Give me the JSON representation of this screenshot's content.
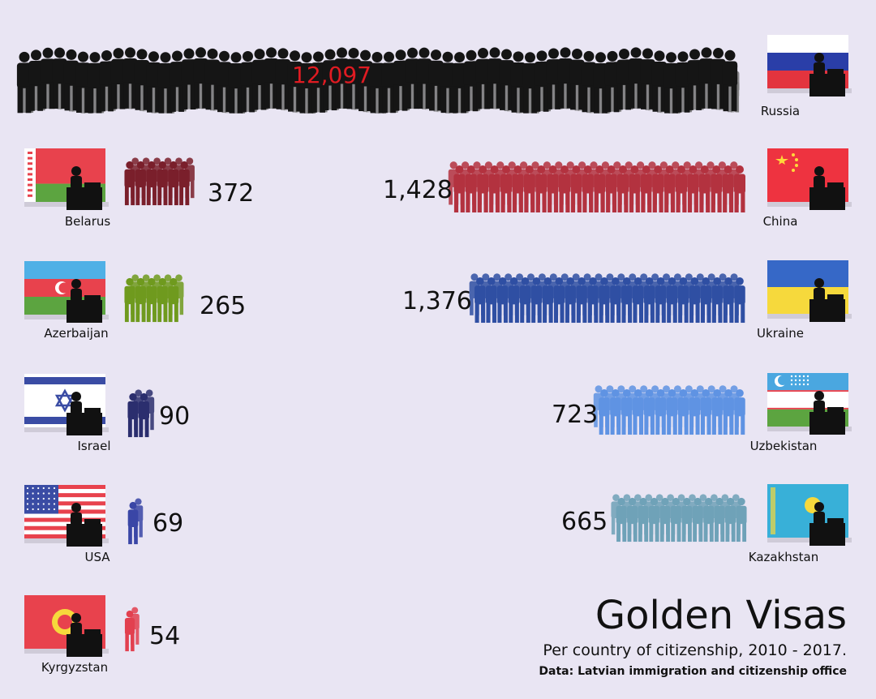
{
  "chart_data": {
    "type": "pictogram",
    "title": "Golden Visas",
    "subtitle": "Per country of citizenship, 2010 - 2017.",
    "source": "Data: Latvian immigration and citizenship office",
    "categories": [
      "Russia",
      "Belarus",
      "China",
      "Azerbaijan",
      "Ukraine",
      "Israel",
      "Uzbekistan",
      "USA",
      "Kazakhstan",
      "Kyrgyzstan"
    ],
    "values": [
      12097,
      372,
      1428,
      265,
      1376,
      90,
      723,
      69,
      665,
      54
    ],
    "value_labels": [
      "12,097",
      "372",
      "1,428",
      "265",
      "1,376",
      "90",
      "723",
      "69",
      "665",
      "54"
    ],
    "colors": {
      "Russia": "#1a1a1a",
      "Belarus": "#7a1f2b",
      "China": "#b3323f",
      "Azerbaijan": "#6f9a1e",
      "Ukraine": "#2f4fa3",
      "Israel": "#2b2e6e",
      "Uzbekistan": "#5f93e3",
      "USA": "#3a46a6",
      "Kazakhstan": "#6fa2b8",
      "Kyrgyzstan": "#e2404f",
      "russia_value_text": "#e01b22"
    }
  }
}
